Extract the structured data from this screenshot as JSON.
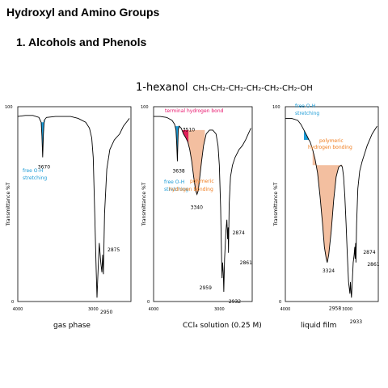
{
  "page": {
    "title": "Hydroxyl and Amino Groups",
    "subtitle": "1. Alcohols and Phenols",
    "compound_name": "1-hexanol",
    "compound_formula": "CH₃-CH₂-CH₂-CH₂-CH₂-CH₂-OH"
  },
  "colors": {
    "free_oh": "#1b9bd6",
    "terminal_h_bond": "#e8136b",
    "terminal_fill": "#e0205a",
    "polymeric": "#f3bfa0",
    "polymeric_text": "#ef7a1a",
    "line": "#000000"
  },
  "chart_data": [
    {
      "type": "line",
      "panel_label": "gas phase",
      "ylabel": "Transmittance %T",
      "y_tick_labels": [
        "100",
        "0"
      ],
      "x_tick_labels": [
        "4000",
        "3000"
      ],
      "xlim": [
        4000,
        2500
      ],
      "ylim": [
        0,
        100
      ],
      "series": [
        {
          "x": [
            4000,
            3900,
            3800,
            3720,
            3690,
            3680,
            3670,
            3660,
            3650,
            3620,
            3500,
            3300,
            3200,
            3100,
            3050,
            3020,
            3000,
            2980,
            2960,
            2950,
            2940,
            2920,
            2900,
            2885,
            2875,
            2865,
            2850,
            2820,
            2780,
            2720,
            2650,
            2600,
            2560,
            2520
          ],
          "y": [
            95,
            95.5,
            95.5,
            94.5,
            92,
            85,
            74,
            86,
            93,
            94.5,
            95,
            95,
            94,
            92,
            89,
            84,
            74,
            45,
            15,
            2,
            12,
            30,
            20,
            15,
            24,
            14,
            45,
            68,
            78,
            83,
            86,
            90,
            92,
            94
          ]
        }
      ],
      "annotations": [
        {
          "text": "3670",
          "x": 3670
        },
        {
          "text": "2875",
          "x": 2875
        },
        {
          "text": "2950",
          "x": 2950
        },
        {
          "text": "free O-H",
          "kind": "free"
        },
        {
          "text": "stretching",
          "kind": "free"
        }
      ]
    },
    {
      "type": "line",
      "panel_label": "CCl₄ solution (0.25 M)",
      "ylabel": "Transmittance %T",
      "y_tick_labels": [
        "100",
        "0"
      ],
      "x_tick_labels": [
        "4000",
        "3000"
      ],
      "xlim": [
        4000,
        2500
      ],
      "ylim": [
        0,
        100
      ],
      "series": [
        {
          "x": [
            4000,
            3900,
            3800,
            3720,
            3680,
            3660,
            3650,
            3638,
            3625,
            3610,
            3580,
            3545,
            3510,
            3480,
            3450,
            3420,
            3390,
            3360,
            3340,
            3320,
            3300,
            3270,
            3240,
            3200,
            3150,
            3100,
            3050,
            3020,
            3000,
            2980,
            2970,
            2959,
            2950,
            2940,
            2932,
            2920,
            2900,
            2885,
            2874,
            2866,
            2861,
            2850,
            2830,
            2800,
            2760,
            2700,
            2650,
            2600,
            2560,
            2520
          ],
          "y": [
            95,
            95,
            94.5,
            93,
            91,
            88,
            82,
            72,
            88,
            90,
            89,
            86,
            84,
            82,
            78,
            72,
            64,
            57,
            55,
            57,
            63,
            72,
            80,
            86,
            88,
            88,
            86,
            80,
            70,
            48,
            30,
            12,
            20,
            15,
            5,
            22,
            36,
            42,
            32,
            38,
            25,
            50,
            64,
            70,
            74,
            78,
            80,
            83,
            86,
            89
          ]
        }
      ],
      "annotations": [
        {
          "text": "terminal hydrogen bond",
          "kind": "terminal"
        },
        {
          "text": "3510",
          "x": 3510
        },
        {
          "text": "3638",
          "x": 3638
        },
        {
          "text": "free O-H",
          "kind": "free"
        },
        {
          "text": "stretching",
          "kind": "free"
        },
        {
          "text": "3340",
          "x": 3340
        },
        {
          "text": "polymeric",
          "kind": "polymeric"
        },
        {
          "text": "hydrogen bonding",
          "kind": "polymeric"
        },
        {
          "text": "2874",
          "x": 2874
        },
        {
          "text": "2861",
          "x": 2861
        },
        {
          "text": "2959",
          "x": 2959
        },
        {
          "text": "2932",
          "x": 2932
        }
      ]
    },
    {
      "type": "line",
      "panel_label": "liquid film",
      "ylabel": "Transmittance %T",
      "y_tick_labels": [
        "100",
        "0"
      ],
      "x_tick_labels": [
        "4000",
        "3000"
      ],
      "xlim": [
        4000,
        2500
      ],
      "ylim": [
        0,
        100
      ],
      "series": [
        {
          "x": [
            4000,
            3900,
            3800,
            3750,
            3700,
            3650,
            3620,
            3600,
            3560,
            3520,
            3480,
            3440,
            3400,
            3370,
            3340,
            3324,
            3300,
            3260,
            3220,
            3180,
            3140,
            3100,
            3080,
            3060,
            3040,
            3020,
            3000,
            2980,
            2965,
            2958,
            2950,
            2940,
            2933,
            2920,
            2905,
            2890,
            2880,
            2874,
            2866,
            2861,
            2850,
            2830,
            2800,
            2760,
            2720,
            2680,
            2640,
            2600,
            2560,
            2520
          ],
          "y": [
            94,
            94,
            93,
            91,
            88,
            85,
            83,
            82,
            78,
            73,
            66,
            54,
            40,
            28,
            22,
            20,
            24,
            36,
            52,
            64,
            69,
            70,
            69,
            64,
            54,
            40,
            24,
            10,
            6,
            4,
            10,
            5,
            2,
            10,
            20,
            24,
            28,
            22,
            30,
            20,
            40,
            58,
            67,
            72,
            76,
            80,
            83,
            86,
            88,
            90
          ]
        }
      ],
      "annotations": [
        {
          "text": "free O-H",
          "kind": "free"
        },
        {
          "text": "stretching",
          "kind": "free"
        },
        {
          "text": "polymeric",
          "kind": "polymeric"
        },
        {
          "text": "hydrogen bonding",
          "kind": "polymeric"
        },
        {
          "text": "3324",
          "x": 3324
        },
        {
          "text": "2874",
          "x": 2874
        },
        {
          "text": "2861",
          "x": 2861
        },
        {
          "text": "2958",
          "x": 2958
        },
        {
          "text": "2933",
          "x": 2933
        }
      ]
    }
  ]
}
